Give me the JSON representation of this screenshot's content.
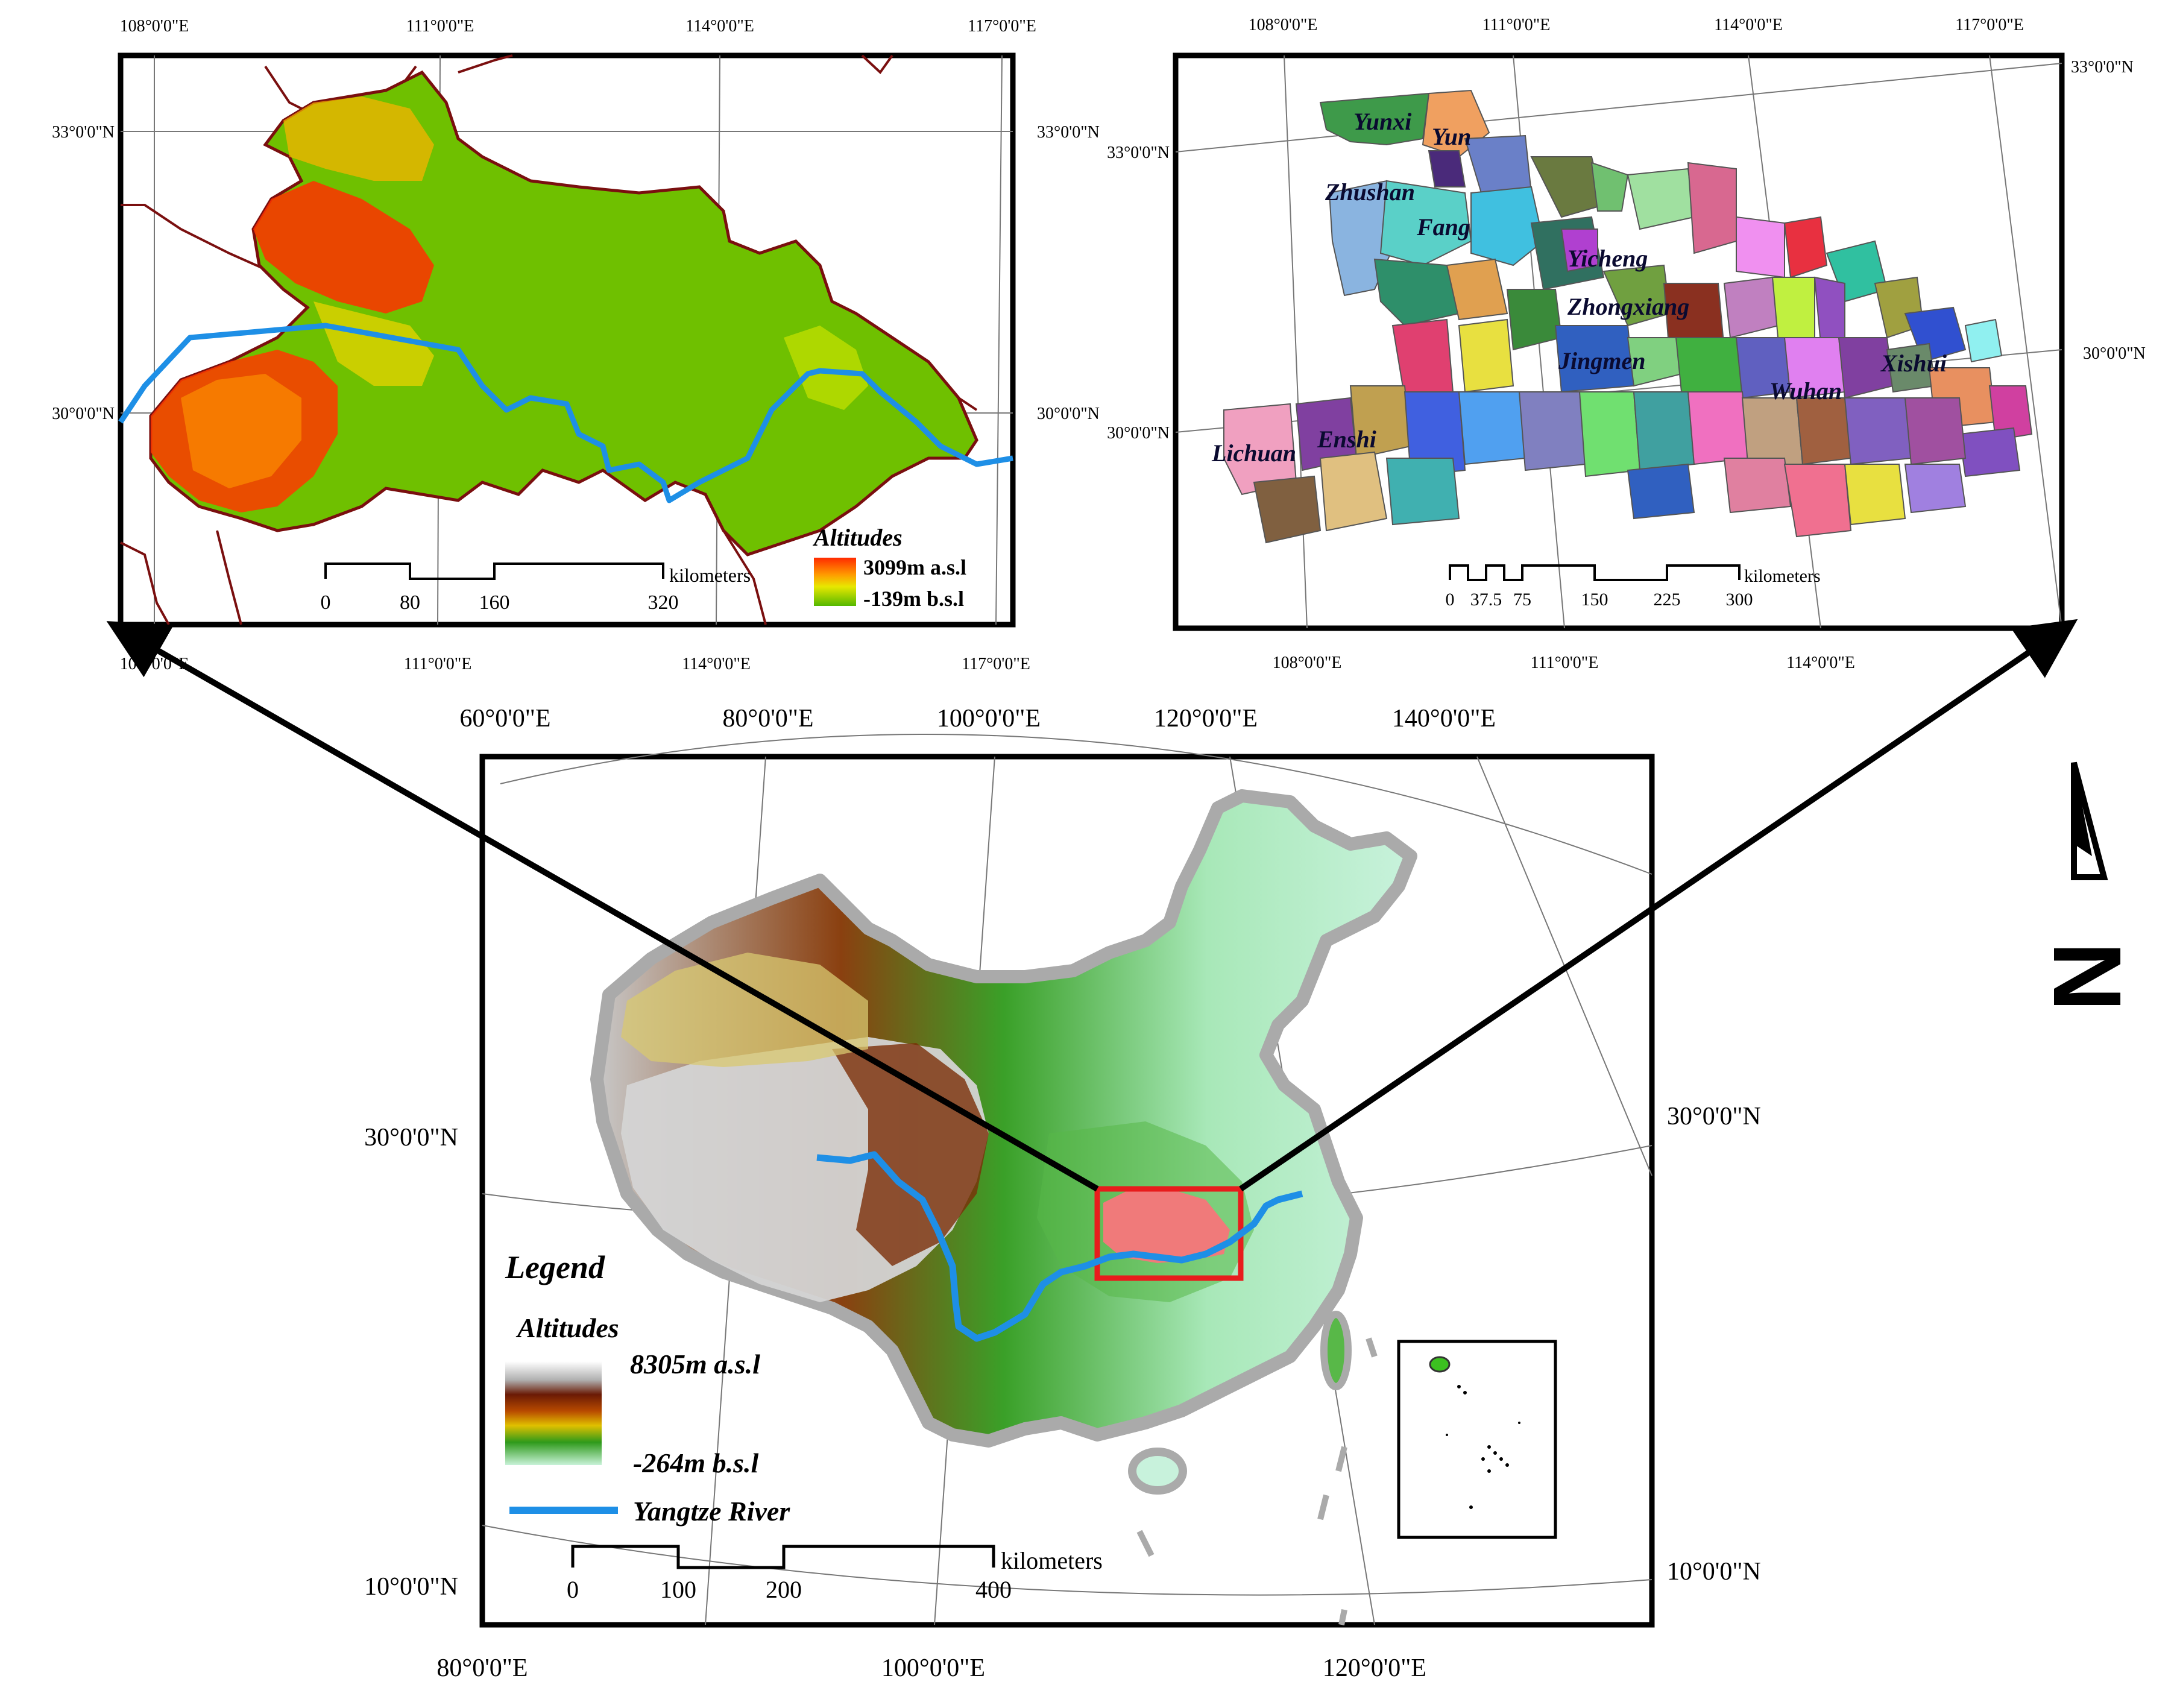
{
  "panel_left": {
    "top_lon_labels": [
      "108°0'0\"E",
      "111°0'0\"E",
      "114°0'0\"E",
      "117°0'0\"E"
    ],
    "bottom_lon_labels": [
      "108°0'0\"E",
      "111°0'0\"E",
      "114°0'0\"E",
      "117°0'0\"E"
    ],
    "left_lat_labels": [
      "33°0'0\"N",
      "30°0'0\"N"
    ],
    "right_lat_labels": [
      "33°0'0\"N",
      "30°0'0\"N"
    ],
    "legend_title": "Altitudes",
    "legend_high": "3099m a.s.l",
    "legend_low": "-139m b.s.l",
    "scale_ticks": [
      "0",
      "80",
      "160",
      "320"
    ],
    "scale_unit": "kilometers"
  },
  "panel_right": {
    "top_lon_labels": [
      "108°0'0\"E",
      "111°0'0\"E",
      "114°0'0\"E",
      "117°0'0\"E"
    ],
    "bottom_lon_labels": [
      "108°0'0\"E",
      "111°0'0\"E",
      "114°0'0\"E"
    ],
    "left_lat_labels": [
      "33°0'0\"N",
      "30°0'0\"N"
    ],
    "right_lat_labels": [
      "33°0'0\"N",
      "30°0'0\"N"
    ],
    "place_labels": [
      "Yunxi",
      "Yun",
      "Zhushan",
      "Fang",
      "Yicheng",
      "Zhongxiang",
      "Jingmen",
      "Xishui",
      "Wuhan",
      "Lichuan",
      "Enshi"
    ],
    "scale_ticks": [
      "0",
      "37.5",
      "75",
      "150",
      "225",
      "300"
    ],
    "scale_unit": "kilometers"
  },
  "panel_main": {
    "top_lon_labels": [
      "60°0'0\"E",
      "80°0'0\"E",
      "100°0'0\"E",
      "120°0'0\"E",
      "140°0'0\"E"
    ],
    "bottom_lon_labels": [
      "80°0'0\"E",
      "100°0'0\"E",
      "120°0'0\"E"
    ],
    "left_lat_labels": [
      "30°0'0\"N",
      "10°0'0\"N"
    ],
    "right_lat_labels": [
      "30°0'0\"N",
      "10°0'0\"N"
    ],
    "legend_title": "Legend",
    "legend_alt_title": "Altitudes",
    "legend_high": "8305m a.s.l",
    "legend_low": "-264m b.s.l",
    "legend_river": "Yangtze River",
    "scale_ticks": [
      "0",
      "100",
      "200",
      "400"
    ],
    "scale_unit": "kilometers"
  },
  "north_arrow_label": "N",
  "colors": {
    "river": "#1e8fe6",
    "frame": "#000000",
    "highlight_box": "#e81c1c",
    "hubei_fill": "#f07a7a",
    "province_border": "#7a0f0f"
  },
  "icons": [
    "north-arrow-icon",
    "callout-arrow-icon"
  ]
}
